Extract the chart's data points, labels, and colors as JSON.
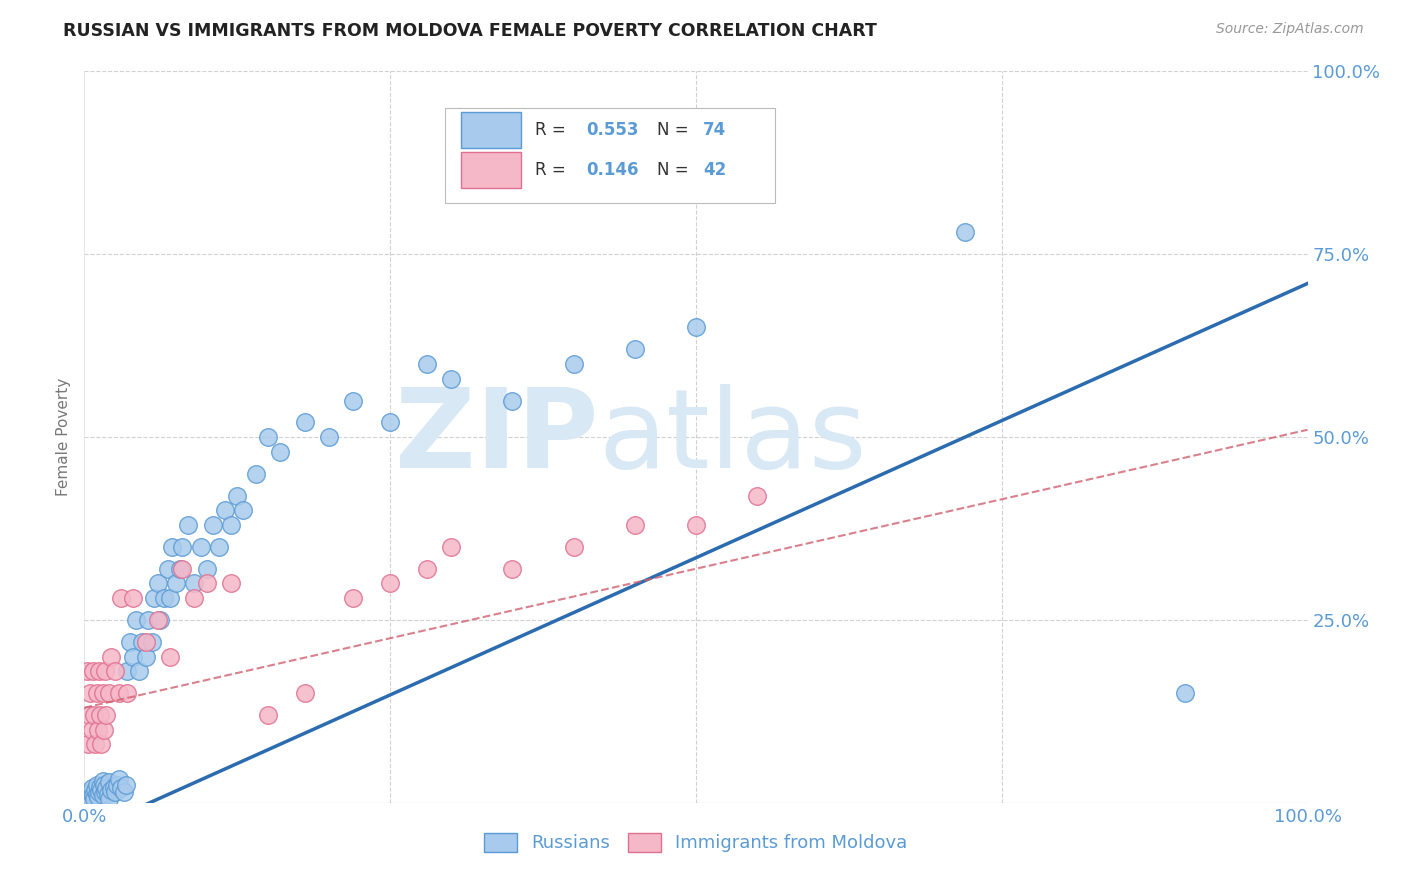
{
  "title": "RUSSIAN VS IMMIGRANTS FROM MOLDOVA FEMALE POVERTY CORRELATION CHART",
  "source": "Source: ZipAtlas.com",
  "ylabel": "Female Poverty",
  "xlim": [
    0,
    1
  ],
  "ylim": [
    0,
    1
  ],
  "russian_R": 0.553,
  "russian_N": 74,
  "moldova_R": 0.146,
  "moldova_N": 42,
  "russian_color": "#A8CAEC",
  "moldova_color": "#F5B8C8",
  "russian_edge_color": "#5B9BD5",
  "moldova_edge_color": "#E07090",
  "russian_line_color": "#2B6CB0",
  "moldova_line_color": "#D06070",
  "background_color": "#FFFFFF",
  "grid_color": "#CCCCCC",
  "watermark_zip": "ZIP",
  "watermark_atlas": "atlas",
  "watermark_color": "#D8E8F5",
  "legend_label_russian": "Russians",
  "legend_label_moldova": "Immigrants from Moldova",
  "tick_color": "#5B9BD5",
  "russian_x": [
    0.002,
    0.003,
    0.004,
    0.005,
    0.006,
    0.007,
    0.008,
    0.009,
    0.01,
    0.01,
    0.011,
    0.012,
    0.013,
    0.014,
    0.015,
    0.015,
    0.016,
    0.017,
    0.018,
    0.019,
    0.02,
    0.02,
    0.022,
    0.024,
    0.025,
    0.027,
    0.028,
    0.03,
    0.032,
    0.034,
    0.035,
    0.037,
    0.04,
    0.042,
    0.045,
    0.047,
    0.05,
    0.052,
    0.055,
    0.057,
    0.06,
    0.062,
    0.065,
    0.068,
    0.07,
    0.072,
    0.075,
    0.078,
    0.08,
    0.085,
    0.09,
    0.095,
    0.1,
    0.105,
    0.11,
    0.115,
    0.12,
    0.125,
    0.13,
    0.14,
    0.15,
    0.16,
    0.18,
    0.2,
    0.22,
    0.25,
    0.28,
    0.3,
    0.35,
    0.4,
    0.45,
    0.5,
    0.72,
    0.9
  ],
  "russian_y": [
    0.01,
    0.005,
    0.008,
    0.015,
    0.02,
    0.01,
    0.005,
    0.018,
    0.012,
    0.025,
    0.008,
    0.015,
    0.022,
    0.018,
    0.01,
    0.03,
    0.025,
    0.015,
    0.02,
    0.012,
    0.005,
    0.028,
    0.018,
    0.022,
    0.015,
    0.025,
    0.032,
    0.02,
    0.015,
    0.025,
    0.18,
    0.22,
    0.2,
    0.25,
    0.18,
    0.22,
    0.2,
    0.25,
    0.22,
    0.28,
    0.3,
    0.25,
    0.28,
    0.32,
    0.28,
    0.35,
    0.3,
    0.32,
    0.35,
    0.38,
    0.3,
    0.35,
    0.32,
    0.38,
    0.35,
    0.4,
    0.38,
    0.42,
    0.4,
    0.45,
    0.5,
    0.48,
    0.52,
    0.5,
    0.55,
    0.52,
    0.6,
    0.58,
    0.55,
    0.6,
    0.62,
    0.65,
    0.78,
    0.15
  ],
  "moldova_x": [
    0.002,
    0.003,
    0.004,
    0.005,
    0.006,
    0.007,
    0.008,
    0.009,
    0.01,
    0.011,
    0.012,
    0.013,
    0.014,
    0.015,
    0.016,
    0.017,
    0.018,
    0.02,
    0.022,
    0.025,
    0.028,
    0.03,
    0.035,
    0.04,
    0.05,
    0.06,
    0.07,
    0.08,
    0.09,
    0.1,
    0.12,
    0.15,
    0.18,
    0.22,
    0.25,
    0.28,
    0.3,
    0.35,
    0.4,
    0.45,
    0.5,
    0.55
  ],
  "moldova_y": [
    0.18,
    0.08,
    0.12,
    0.15,
    0.1,
    0.18,
    0.12,
    0.08,
    0.15,
    0.1,
    0.18,
    0.12,
    0.08,
    0.15,
    0.1,
    0.18,
    0.12,
    0.15,
    0.2,
    0.18,
    0.15,
    0.28,
    0.15,
    0.28,
    0.22,
    0.25,
    0.2,
    0.32,
    0.28,
    0.3,
    0.3,
    0.12,
    0.15,
    0.28,
    0.3,
    0.32,
    0.35,
    0.32,
    0.35,
    0.38,
    0.38,
    0.42
  ]
}
